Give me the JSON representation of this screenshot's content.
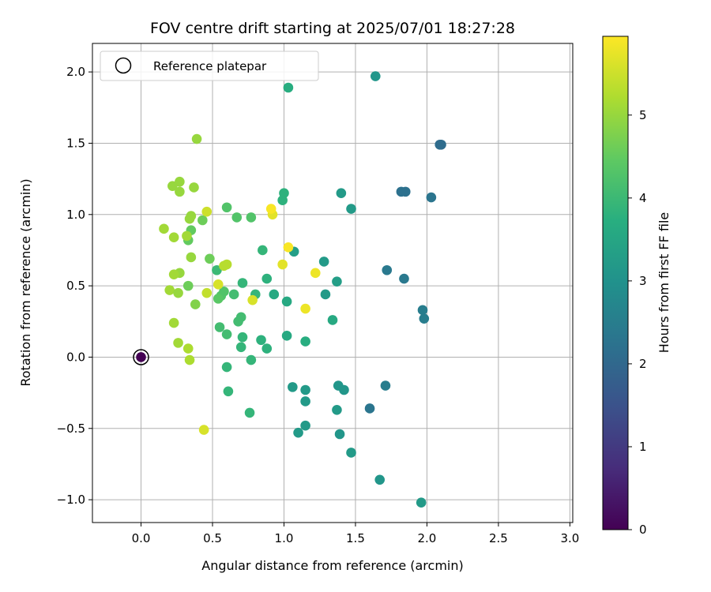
{
  "chart_data": {
    "type": "scatter",
    "title": "FOV centre drift starting at 2025/07/01 18:27:28",
    "xlabel": "Angular distance from reference (arcmin)",
    "ylabel": "Rotation from reference (arcmin)",
    "xlim": [
      -0.34,
      3.02
    ],
    "ylim": [
      -1.16,
      2.2
    ],
    "xticks": [
      0.0,
      0.5,
      1.0,
      1.5,
      2.0,
      2.5,
      3.0
    ],
    "xtick_labels": [
      "0.0",
      "0.5",
      "1.0",
      "1.5",
      "2.0",
      "2.5",
      "3.0"
    ],
    "yticks": [
      -1.0,
      -0.5,
      0.0,
      0.5,
      1.0,
      1.5,
      2.0
    ],
    "ytick_labels": [
      "−1.0",
      "−0.5",
      "0.0",
      "0.5",
      "1.0",
      "1.5",
      "2.0"
    ],
    "grid": true,
    "legend": {
      "placement": "upper-left",
      "entries": [
        {
          "label": "Reference platepar",
          "marker": "open-circle"
        }
      ]
    },
    "colorbar": {
      "label": "Hours from first FF file",
      "colormap": "viridis",
      "range": [
        0,
        5.95
      ],
      "ticks": [
        0,
        1,
        2,
        3,
        4,
        5
      ],
      "tick_labels": [
        "0",
        "1",
        "2",
        "3",
        "4",
        "5"
      ]
    },
    "reference_point": {
      "x": 0.0,
      "y": 0.0
    },
    "points": [
      {
        "x": 0.0,
        "y": 0.0,
        "hours": 0.0
      },
      {
        "x": 2.09,
        "y": 1.49,
        "hours": 2.1
      },
      {
        "x": 2.1,
        "y": 1.49,
        "hours": 2.1
      },
      {
        "x": 1.82,
        "y": 1.16,
        "hours": 2.2
      },
      {
        "x": 1.85,
        "y": 1.16,
        "hours": 2.2
      },
      {
        "x": 2.03,
        "y": 1.12,
        "hours": 2.3
      },
      {
        "x": 1.72,
        "y": 0.61,
        "hours": 2.4
      },
      {
        "x": 1.84,
        "y": 0.55,
        "hours": 2.4
      },
      {
        "x": 1.97,
        "y": 0.33,
        "hours": 2.5
      },
      {
        "x": 1.98,
        "y": 0.27,
        "hours": 2.5
      },
      {
        "x": 1.71,
        "y": -0.2,
        "hours": 2.5
      },
      {
        "x": 1.6,
        "y": -0.36,
        "hours": 2.3
      },
      {
        "x": 1.64,
        "y": 1.97,
        "hours": 3.1
      },
      {
        "x": 1.4,
        "y": 1.15,
        "hours": 3.2
      },
      {
        "x": 1.47,
        "y": 1.04,
        "hours": 3.2
      },
      {
        "x": 1.28,
        "y": 0.67,
        "hours": 3.2
      },
      {
        "x": 1.37,
        "y": 0.53,
        "hours": 3.3
      },
      {
        "x": 1.29,
        "y": 0.44,
        "hours": 3.2
      },
      {
        "x": 1.07,
        "y": 0.74,
        "hours": 3.3
      },
      {
        "x": 1.38,
        "y": -0.2,
        "hours": 3.1
      },
      {
        "x": 1.42,
        "y": -0.23,
        "hours": 3.1
      },
      {
        "x": 1.37,
        "y": -0.37,
        "hours": 3.2
      },
      {
        "x": 1.39,
        "y": -0.54,
        "hours": 3.1
      },
      {
        "x": 1.47,
        "y": -0.67,
        "hours": 3.2
      },
      {
        "x": 1.67,
        "y": -0.86,
        "hours": 3.1
      },
      {
        "x": 1.96,
        "y": -1.02,
        "hours": 3.2
      },
      {
        "x": 1.06,
        "y": -0.21,
        "hours": 3.2
      },
      {
        "x": 1.15,
        "y": -0.23,
        "hours": 3.2
      },
      {
        "x": 1.15,
        "y": -0.31,
        "hours": 3.2
      },
      {
        "x": 1.1,
        "y": -0.53,
        "hours": 3.2
      },
      {
        "x": 1.15,
        "y": -0.48,
        "hours": 3.2
      },
      {
        "x": 1.03,
        "y": 1.89,
        "hours": 3.7
      },
      {
        "x": 1.0,
        "y": 1.15,
        "hours": 3.8
      },
      {
        "x": 0.99,
        "y": 1.1,
        "hours": 3.8
      },
      {
        "x": 0.85,
        "y": 0.75,
        "hours": 3.9
      },
      {
        "x": 0.88,
        "y": 0.55,
        "hours": 3.8
      },
      {
        "x": 0.93,
        "y": 0.44,
        "hours": 3.6
      },
      {
        "x": 1.02,
        "y": 0.39,
        "hours": 3.6
      },
      {
        "x": 1.34,
        "y": 0.26,
        "hours": 3.6
      },
      {
        "x": 1.02,
        "y": 0.15,
        "hours": 3.6
      },
      {
        "x": 1.15,
        "y": 0.11,
        "hours": 3.7
      },
      {
        "x": 0.84,
        "y": 0.12,
        "hours": 3.8
      },
      {
        "x": 0.88,
        "y": 0.06,
        "hours": 3.8
      },
      {
        "x": 0.77,
        "y": -0.02,
        "hours": 3.9
      },
      {
        "x": 0.8,
        "y": 0.44,
        "hours": 3.9
      },
      {
        "x": 0.71,
        "y": 0.52,
        "hours": 3.9
      },
      {
        "x": 0.7,
        "y": 0.07,
        "hours": 3.9
      },
      {
        "x": 0.71,
        "y": 0.14,
        "hours": 3.9
      },
      {
        "x": 0.6,
        "y": -0.07,
        "hours": 3.9
      },
      {
        "x": 0.61,
        "y": -0.24,
        "hours": 3.9
      },
      {
        "x": 0.76,
        "y": -0.39,
        "hours": 3.9
      },
      {
        "x": 0.53,
        "y": 0.61,
        "hours": 4.0
      },
      {
        "x": 0.65,
        "y": 0.44,
        "hours": 4.1
      },
      {
        "x": 0.68,
        "y": 0.25,
        "hours": 4.1
      },
      {
        "x": 0.7,
        "y": 0.28,
        "hours": 4.1
      },
      {
        "x": 0.55,
        "y": 0.21,
        "hours": 4.1
      },
      {
        "x": 0.6,
        "y": 0.16,
        "hours": 4.1
      },
      {
        "x": 0.67,
        "y": 0.98,
        "hours": 4.3
      },
      {
        "x": 0.77,
        "y": 0.98,
        "hours": 4.3
      },
      {
        "x": 0.6,
        "y": 1.05,
        "hours": 4.3
      },
      {
        "x": 0.58,
        "y": 0.46,
        "hours": 4.3
      },
      {
        "x": 0.56,
        "y": 0.43,
        "hours": 4.3
      },
      {
        "x": 0.54,
        "y": 0.41,
        "hours": 4.4
      },
      {
        "x": 0.33,
        "y": 0.82,
        "hours": 4.5
      },
      {
        "x": 0.35,
        "y": 0.89,
        "hours": 4.5
      },
      {
        "x": 0.43,
        "y": 0.96,
        "hours": 4.6
      },
      {
        "x": 0.48,
        "y": 0.69,
        "hours": 4.6
      },
      {
        "x": 0.33,
        "y": 0.5,
        "hours": 4.6
      },
      {
        "x": 0.38,
        "y": 0.37,
        "hours": 4.8
      },
      {
        "x": 0.39,
        "y": 1.53,
        "hours": 5.0
      },
      {
        "x": 0.27,
        "y": 1.23,
        "hours": 5.0
      },
      {
        "x": 0.22,
        "y": 1.2,
        "hours": 5.0
      },
      {
        "x": 0.27,
        "y": 1.16,
        "hours": 5.0
      },
      {
        "x": 0.37,
        "y": 1.19,
        "hours": 5.0
      },
      {
        "x": 0.34,
        "y": 0.97,
        "hours": 5.0
      },
      {
        "x": 0.35,
        "y": 0.99,
        "hours": 5.0
      },
      {
        "x": 0.16,
        "y": 0.9,
        "hours": 5.1
      },
      {
        "x": 0.23,
        "y": 0.84,
        "hours": 5.1
      },
      {
        "x": 0.32,
        "y": 0.85,
        "hours": 5.1
      },
      {
        "x": 0.35,
        "y": 0.7,
        "hours": 5.0
      },
      {
        "x": 0.27,
        "y": 0.59,
        "hours": 5.0
      },
      {
        "x": 0.23,
        "y": 0.58,
        "hours": 5.1
      },
      {
        "x": 0.2,
        "y": 0.47,
        "hours": 5.1
      },
      {
        "x": 0.26,
        "y": 0.45,
        "hours": 5.0
      },
      {
        "x": 0.23,
        "y": 0.24,
        "hours": 5.1
      },
      {
        "x": 0.26,
        "y": 0.1,
        "hours": 5.1
      },
      {
        "x": 0.33,
        "y": 0.06,
        "hours": 5.2
      },
      {
        "x": 0.34,
        "y": -0.02,
        "hours": 5.2
      },
      {
        "x": 0.6,
        "y": 0.65,
        "hours": 5.3
      },
      {
        "x": 0.58,
        "y": 0.64,
        "hours": 5.3
      },
      {
        "x": 0.46,
        "y": 0.45,
        "hours": 5.4
      },
      {
        "x": 0.46,
        "y": 1.02,
        "hours": 5.5
      },
      {
        "x": 0.54,
        "y": 0.51,
        "hours": 5.6
      },
      {
        "x": 0.78,
        "y": 0.4,
        "hours": 5.6
      },
      {
        "x": 0.92,
        "y": 1.0,
        "hours": 5.7
      },
      {
        "x": 0.91,
        "y": 1.04,
        "hours": 5.9
      },
      {
        "x": 1.03,
        "y": 0.77,
        "hours": 5.9
      },
      {
        "x": 0.99,
        "y": 0.65,
        "hours": 5.7
      },
      {
        "x": 1.22,
        "y": 0.59,
        "hours": 5.8
      },
      {
        "x": 1.15,
        "y": 0.34,
        "hours": 5.8
      },
      {
        "x": 0.44,
        "y": -0.51,
        "hours": 5.6
      }
    ]
  }
}
